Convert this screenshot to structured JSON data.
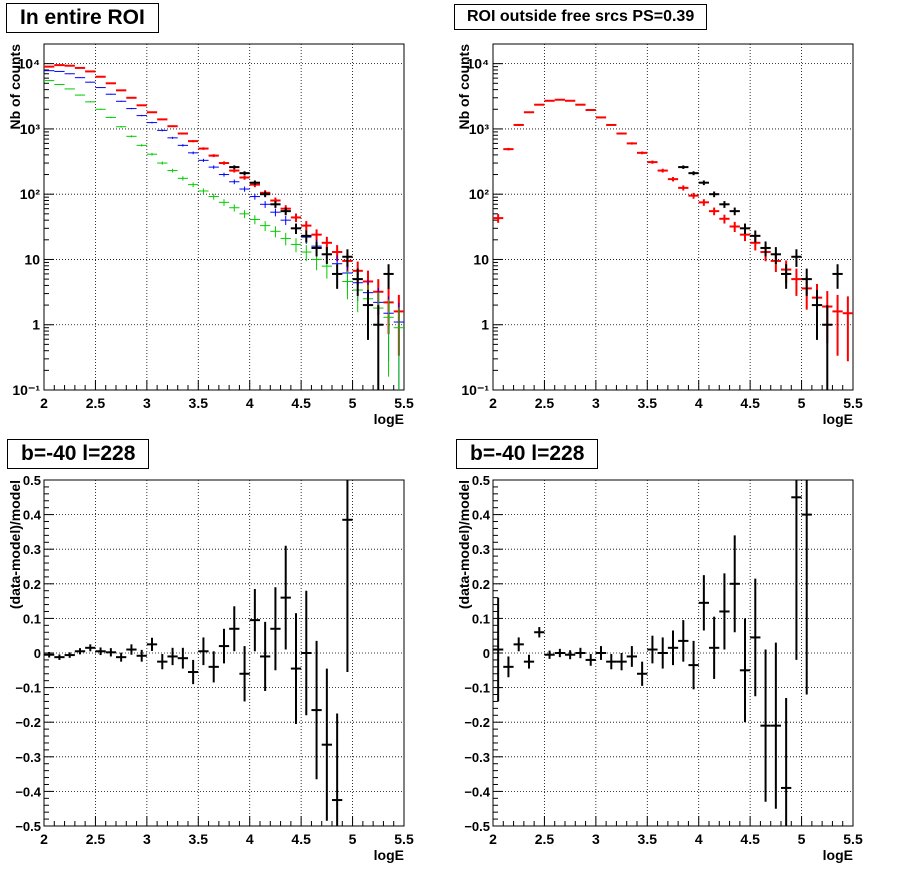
{
  "chart_data": [
    {
      "type": "scatter",
      "title": "In entire ROI",
      "xlabel": "logE",
      "ylabel": "Nb of counts",
      "xlim": [
        2,
        5.5
      ],
      "ylim": [
        0.1,
        20000
      ],
      "ylog": true,
      "grid": true,
      "x_ticks": [
        "2",
        "2.5",
        "3",
        "3.5",
        "4",
        "4.5",
        "5",
        "5.5"
      ],
      "y_ticks": [
        "10⁻¹",
        "1",
        "10",
        "10²",
        "10³",
        "10⁴"
      ],
      "series": [
        {
          "color": "#ff0000",
          "x": [
            2.05,
            2.15,
            2.25,
            2.35,
            2.45,
            2.55,
            2.65,
            2.75,
            2.85,
            2.95,
            3.05,
            3.15,
            3.25,
            3.35,
            3.45,
            3.55,
            3.65,
            3.75,
            3.85,
            3.95,
            4.05,
            4.15,
            4.25,
            4.35,
            4.45,
            4.55,
            4.65,
            4.75,
            4.85,
            4.95,
            5.05,
            5.15,
            5.25,
            5.35,
            5.45
          ],
          "y": [
            9000,
            9500,
            9300,
            8600,
            7600,
            6300,
            5000,
            3900,
            3000,
            2300,
            1800,
            1400,
            1100,
            850,
            650,
            500,
            390,
            300,
            230,
            180,
            140,
            105,
            80,
            60,
            44,
            33,
            24,
            18,
            13,
            9.5,
            6.7,
            4.6,
            3.2,
            2.2,
            1.6
          ]
        },
        {
          "color": "#0000ff",
          "x": [
            2.05,
            2.15,
            2.25,
            2.35,
            2.45,
            2.55,
            2.65,
            2.75,
            2.85,
            2.95,
            3.05,
            3.15,
            3.25,
            3.35,
            3.45,
            3.55,
            3.65,
            3.75,
            3.85,
            3.95,
            4.05,
            4.15,
            4.25,
            4.35,
            4.45,
            4.55,
            4.65,
            4.75,
            4.85,
            4.95,
            5.05,
            5.15,
            5.25,
            5.35,
            5.45
          ],
          "y": [
            7800,
            7600,
            7000,
            6100,
            5200,
            4300,
            3400,
            2650,
            2050,
            1600,
            1250,
            950,
            730,
            560,
            430,
            330,
            260,
            200,
            155,
            120,
            92,
            70,
            53,
            40,
            30,
            22,
            16,
            12,
            8.6,
            6.2,
            4.4,
            3.1,
            2.2,
            1.5,
            1.1
          ]
        },
        {
          "color": "#00cc00",
          "x": [
            2.05,
            2.15,
            2.25,
            2.35,
            2.45,
            2.55,
            2.65,
            2.75,
            2.85,
            2.95,
            3.05,
            3.15,
            3.25,
            3.35,
            3.45,
            3.55,
            3.65,
            3.75,
            3.85,
            3.95,
            4.05,
            4.15,
            4.25,
            4.35,
            4.45,
            4.55,
            4.65,
            4.75,
            4.85,
            4.95,
            5.05,
            5.15,
            5.25,
            5.35,
            5.45
          ],
          "y": [
            5500,
            4800,
            4100,
            3300,
            2600,
            2000,
            1500,
            1080,
            770,
            560,
            410,
            300,
            230,
            175,
            140,
            112,
            92,
            75,
            62,
            50,
            41,
            33,
            27,
            21,
            17,
            13,
            10,
            7.9,
            6,
            4.6,
            3.4,
            2.5,
            1.8,
            1.3,
            0.9
          ]
        },
        {
          "color": "#000000",
          "x": [
            3.85,
            3.95,
            4.05,
            4.15,
            4.25,
            4.35,
            4.45,
            4.55,
            4.65,
            4.75,
            4.85,
            4.95,
            5.05,
            5.15,
            5.25,
            5.35
          ],
          "y": [
            260,
            210,
            150,
            100,
            70,
            55,
            30,
            23,
            15,
            12,
            6,
            11,
            5,
            2,
            1,
            6
          ]
        }
      ]
    },
    {
      "type": "scatter",
      "title": "ROI outside free srcs PS=0.39",
      "xlabel": "logE",
      "ylabel": "Nb of counts",
      "xlim": [
        2,
        5.5
      ],
      "ylim": [
        0.1,
        20000
      ],
      "ylog": true,
      "grid": true,
      "x_ticks": [
        "2",
        "2.5",
        "3",
        "3.5",
        "4",
        "4.5",
        "5",
        "5.5"
      ],
      "y_ticks": [
        "10⁻¹",
        "1",
        "10",
        "10²",
        "10³",
        "10⁴"
      ],
      "series": [
        {
          "color": "#ff0000",
          "x": [
            2.05,
            2.15,
            2.25,
            2.35,
            2.45,
            2.55,
            2.65,
            2.75,
            2.85,
            2.95,
            3.05,
            3.15,
            3.25,
            3.35,
            3.45,
            3.55,
            3.65,
            3.75,
            3.85,
            3.95,
            4.05,
            4.15,
            4.25,
            4.35,
            4.45,
            4.55,
            4.65,
            4.75,
            4.85,
            4.95,
            5.05,
            5.15,
            5.25,
            5.35,
            5.45
          ],
          "y": [
            43,
            490,
            1150,
            1800,
            2350,
            2700,
            2800,
            2700,
            2350,
            1950,
            1500,
            1150,
            850,
            600,
            430,
            310,
            230,
            170,
            125,
            95,
            75,
            55,
            42,
            32,
            24,
            18,
            13,
            9.5,
            7,
            5,
            3.6,
            2.6,
            1.9,
            1.6,
            1.5
          ]
        },
        {
          "color": "#000000",
          "x": [
            3.85,
            3.95,
            4.05,
            4.15,
            4.25,
            4.35,
            4.45,
            4.55,
            4.65,
            4.75,
            4.85,
            4.95,
            5.05,
            5.15,
            5.25,
            5.35
          ],
          "y": [
            260,
            210,
            150,
            100,
            70,
            55,
            30,
            23,
            15,
            12,
            6,
            11,
            5,
            2,
            1,
            6
          ]
        }
      ]
    },
    {
      "type": "scatter",
      "title": "b=-40 l=228",
      "xlabel": "logE",
      "ylabel": "(data-model)/model",
      "xlim": [
        2,
        5.5
      ],
      "ylim": [
        -0.5,
        0.5
      ],
      "ylog": false,
      "grid": true,
      "x_ticks": [
        "2",
        "2.5",
        "3",
        "3.5",
        "4",
        "4.5",
        "5",
        "5.5"
      ],
      "y_ticks": [
        "−0.5",
        "−0.4",
        "−0.3",
        "−0.2",
        "−0.1",
        "0",
        "0.1",
        "0.2",
        "0.3",
        "0.4",
        "0.5"
      ],
      "series": [
        {
          "color": "#000000",
          "x": [
            2.05,
            2.15,
            2.25,
            2.35,
            2.45,
            2.55,
            2.65,
            2.75,
            2.85,
            2.95,
            3.05,
            3.15,
            3.25,
            3.35,
            3.45,
            3.55,
            3.65,
            3.75,
            3.85,
            3.95,
            4.05,
            4.15,
            4.25,
            4.35,
            4.45,
            4.55,
            4.65,
            4.75,
            4.85,
            4.95
          ],
          "y": [
            -0.005,
            -0.012,
            -0.006,
            0.005,
            0.015,
            0.005,
            0.002,
            -0.012,
            0.01,
            -0.008,
            0.025,
            -0.025,
            -0.01,
            -0.015,
            -0.055,
            0.005,
            -0.04,
            0.02,
            0.07,
            -0.06,
            0.095,
            -0.01,
            0.07,
            0.16,
            -0.045,
            0.0,
            -0.165,
            -0.265,
            -0.425,
            0.385
          ],
          "err": [
            0.008,
            0.008,
            0.008,
            0.009,
            0.01,
            0.011,
            0.012,
            0.013,
            0.015,
            0.017,
            0.019,
            0.022,
            0.025,
            0.03,
            0.035,
            0.04,
            0.045,
            0.05,
            0.065,
            0.08,
            0.09,
            0.1,
            0.12,
            0.15,
            0.16,
            0.18,
            0.2,
            0.22,
            0.25,
            0.44
          ]
        }
      ]
    },
    {
      "type": "scatter",
      "title": "b=-40 l=228",
      "xlabel": "logE",
      "ylabel": "(data-model)/model",
      "xlim": [
        2,
        5.5
      ],
      "ylim": [
        -0.5,
        0.5
      ],
      "ylog": false,
      "grid": true,
      "x_ticks": [
        "2",
        "2.5",
        "3",
        "3.5",
        "4",
        "4.5",
        "5",
        "5.5"
      ],
      "y_ticks": [
        "−0.5",
        "−0.4",
        "−0.3",
        "−0.2",
        "−0.1",
        "0",
        "0.1",
        "0.2",
        "0.3",
        "0.4",
        "0.5"
      ],
      "series": [
        {
          "color": "#000000",
          "x": [
            2.05,
            2.15,
            2.25,
            2.35,
            2.45,
            2.55,
            2.65,
            2.75,
            2.85,
            2.95,
            3.05,
            3.15,
            3.25,
            3.35,
            3.45,
            3.55,
            3.65,
            3.75,
            3.85,
            3.95,
            4.05,
            4.15,
            4.25,
            4.35,
            4.45,
            4.55,
            4.65,
            4.75,
            4.85,
            4.95,
            5.05
          ],
          "y": [
            0.01,
            -0.04,
            0.025,
            -0.025,
            0.06,
            -0.005,
            0.0,
            -0.005,
            0.0,
            -0.02,
            0.0,
            -0.025,
            -0.025,
            -0.01,
            -0.06,
            0.01,
            0.0,
            0.015,
            0.035,
            -0.035,
            0.145,
            0.015,
            0.12,
            0.2,
            -0.05,
            0.045,
            -0.21,
            -0.21,
            -0.39,
            0.45,
            0.4
          ],
          "err": [
            0.15,
            0.03,
            0.02,
            0.02,
            0.015,
            0.012,
            0.012,
            0.013,
            0.015,
            0.017,
            0.02,
            0.022,
            0.025,
            0.03,
            0.035,
            0.04,
            0.045,
            0.05,
            0.06,
            0.07,
            0.08,
            0.09,
            0.11,
            0.14,
            0.15,
            0.17,
            0.22,
            0.24,
            0.26,
            0.47,
            0.52
          ]
        }
      ]
    }
  ]
}
